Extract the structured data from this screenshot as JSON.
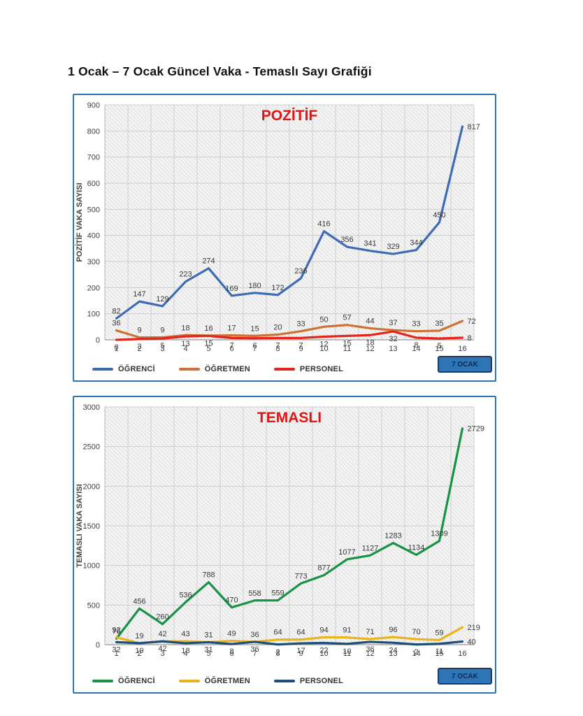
{
  "page": {
    "title": "1 Ocak – 7 Ocak Güncel Vaka - Temaslı Sayı Grafiği"
  },
  "chart_data": [
    {
      "type": "line",
      "title": "POZİTİF",
      "title_color": "#e01414",
      "ylabel": "POZİTİF VAKA SAYISI",
      "ylim": [
        0,
        900
      ],
      "ytick_step": 100,
      "grid": true,
      "legend_position": "bottom",
      "badge": "7 OCAK",
      "categories": [
        "1",
        "2",
        "3",
        "4",
        "5",
        "6",
        "7",
        "8",
        "9",
        "10",
        "11",
        "12",
        "13",
        "14",
        "15",
        "16"
      ],
      "series": [
        {
          "name": "ÖĞRENCİ",
          "color": "#3d6cb4",
          "label_side": "above",
          "values": [
            82,
            147,
            129,
            223,
            274,
            169,
            180,
            172,
            236,
            416,
            356,
            341,
            329,
            344,
            450,
            817
          ]
        },
        {
          "name": "ÖĞRETMEN",
          "color": "#cf7134",
          "label_side": "above",
          "values": [
            36,
            9,
            9,
            18,
            16,
            17,
            15,
            20,
            33,
            50,
            57,
            44,
            37,
            33,
            35,
            72
          ]
        },
        {
          "name": "PERSONEL",
          "color": "#e2261c",
          "label_side": "below",
          "values": [
            0,
            3,
            5,
            13,
            15,
            7,
            6,
            7,
            7,
            12,
            15,
            18,
            32,
            8,
            5,
            8
          ]
        }
      ]
    },
    {
      "type": "line",
      "title": "TEMASLI",
      "title_color": "#e01414",
      "ylabel": "TEMASLI VAKA SAYISI",
      "ylim": [
        0,
        3000
      ],
      "ytick_step": 500,
      "grid": true,
      "legend_position": "bottom",
      "badge": "7 OCAK",
      "categories": [
        "1",
        "2",
        "3",
        "4",
        "5",
        "6",
        "7",
        "8",
        "9",
        "10",
        "11",
        "12",
        "13",
        "14",
        "15",
        "16"
      ],
      "series": [
        {
          "name": "ÖĞRENCİ",
          "color": "#189245",
          "label_side": "above",
          "values": [
            76,
            456,
            260,
            536,
            788,
            470,
            558,
            559,
            773,
            877,
            1077,
            1127,
            1283,
            1134,
            1309,
            2729
          ]
        },
        {
          "name": "ÖĞRETMEN",
          "color": "#eab41e",
          "label_side": "above",
          "values": [
            92,
            19,
            42,
            43,
            31,
            49,
            36,
            64,
            64,
            94,
            91,
            71,
            96,
            70,
            59,
            219
          ]
        },
        {
          "name": "PERSONEL",
          "color": "#1f4e79",
          "label_side": "below",
          "values": [
            32,
            19,
            42,
            18,
            31,
            8,
            36,
            2,
            17,
            22,
            10,
            36,
            24,
            2,
            11,
            40
          ]
        }
      ]
    }
  ]
}
